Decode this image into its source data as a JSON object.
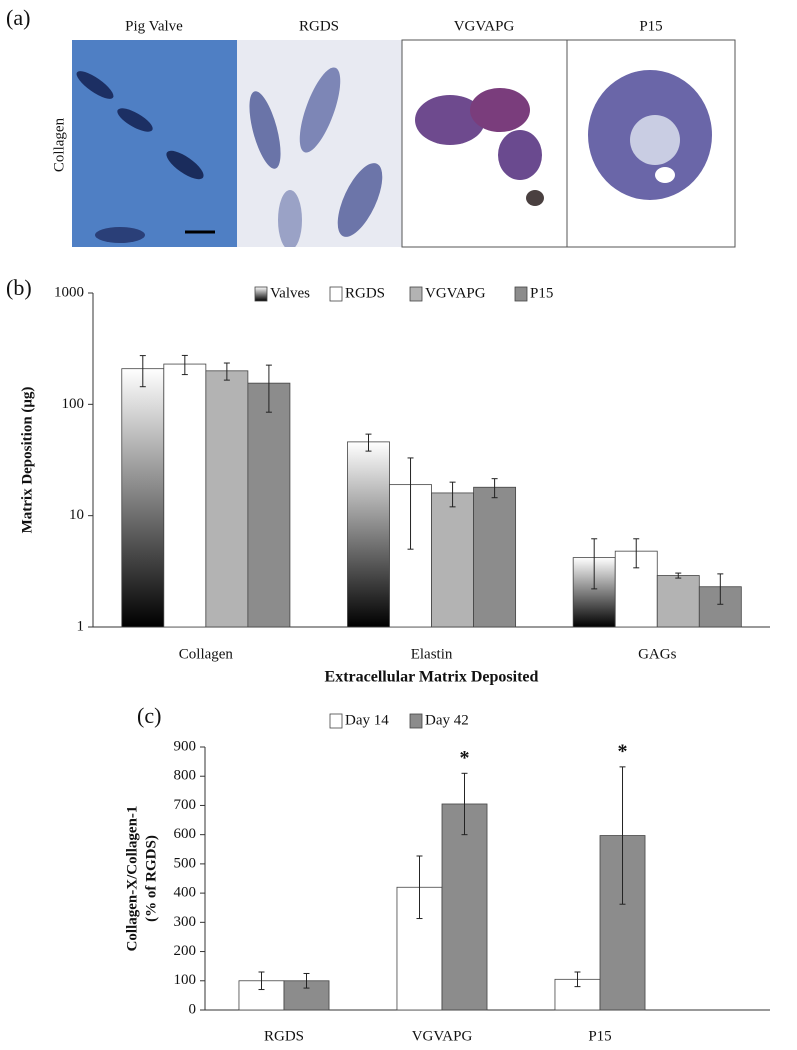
{
  "panel_a": {
    "label": "(a)",
    "row_label": "Collagen",
    "columns": [
      "Pig Valve",
      "RGDS",
      "VGVAPG",
      "P15"
    ]
  },
  "chart_data": [
    {
      "type": "bar",
      "panel_label": "(b)",
      "y_label": "Matrix Deposition (μg)",
      "x_label": "Extracellular Matrix Deposited",
      "categories": [
        "Collagen",
        "Elastin",
        "GAGs"
      ],
      "log_scale": true,
      "ylim": [
        1,
        1000
      ],
      "yticks": [
        1,
        10,
        100,
        1000
      ],
      "legend": "top",
      "series": [
        {
          "name": "Valves",
          "color": "#808080",
          "gradient": [
            "#ffffff",
            "#000000"
          ],
          "values": [
            209,
            46,
            4.2
          ],
          "errors": [
            65,
            8,
            2
          ]
        },
        {
          "name": "RGDS",
          "color": "#ffffff",
          "values": [
            230,
            19,
            4.8
          ],
          "errors": [
            45,
            14,
            1.4
          ]
        },
        {
          "name": "VGVAPG",
          "color": "#b3b3b3",
          "values": [
            200,
            16,
            2.9
          ],
          "errors": [
            35,
            4,
            0.15
          ]
        },
        {
          "name": "P15",
          "color": "#8c8c8c",
          "values": [
            155,
            18,
            2.3
          ],
          "errors": [
            70,
            3.5,
            0.7
          ]
        }
      ]
    },
    {
      "type": "bar",
      "panel_label": "(c)",
      "y_label": [
        "Collagen-X/Collagen-1",
        "(% of RGDS)"
      ],
      "categories": [
        "RGDS",
        "VGVAPG",
        "P15"
      ],
      "log_scale": false,
      "ylim": [
        0,
        900
      ],
      "yticks": [
        0,
        100,
        200,
        300,
        400,
        500,
        600,
        700,
        800,
        900
      ],
      "legend": "top",
      "series": [
        {
          "name": "Day 14",
          "color": "#ffffff",
          "values": [
            100,
            420,
            105
          ],
          "errors": [
            30,
            107,
            25
          ]
        },
        {
          "name": "Day 42",
          "color": "#8c8c8c",
          "values": [
            100,
            705,
            597
          ],
          "errors": [
            25,
            105,
            235
          ],
          "significance": [
            null,
            "*",
            "*"
          ]
        }
      ]
    }
  ]
}
